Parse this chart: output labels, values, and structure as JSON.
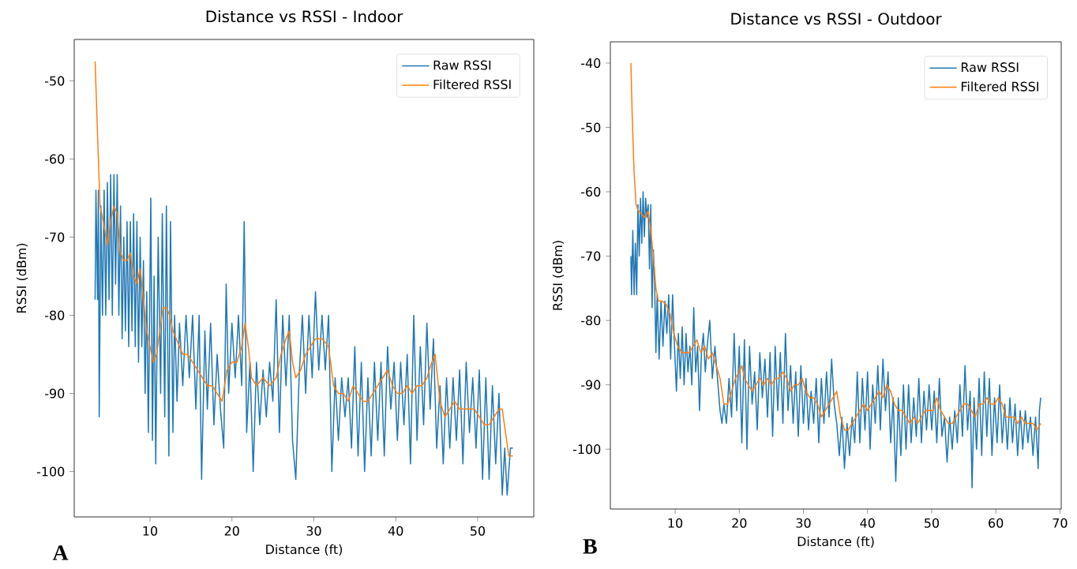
{
  "chart_data": [
    {
      "type": "line",
      "title": "Distance vs RSSI - Indoor",
      "xlabel": "Distance (ft)",
      "ylabel": "RSSI (dBm)",
      "xlim": [
        0.75,
        56.85
      ],
      "ylim": [
        -105.8,
        -44.7
      ],
      "xticks": [
        10,
        20,
        30,
        40,
        50
      ],
      "yticks": [
        -100,
        -90,
        -80,
        -70,
        -60,
        -50
      ],
      "legend": "top right",
      "grid": false,
      "marker": "none",
      "line_style": "solid",
      "annotations": [
        "A"
      ],
      "series": [
        {
          "name": "Raw RSSI",
          "color": "#1f77b4",
          "x": [
            3.3,
            3.4,
            3.6,
            3.7,
            3.8,
            4.0,
            4.2,
            4.4,
            4.6,
            4.8,
            5.0,
            5.2,
            5.4,
            5.6,
            5.8,
            6.0,
            6.2,
            6.4,
            6.6,
            6.8,
            7.0,
            7.2,
            7.4,
            7.6,
            7.8,
            8.0,
            8.2,
            8.4,
            8.6,
            8.8,
            9.0,
            9.2,
            9.4,
            9.6,
            9.8,
            10.1,
            10.3,
            10.5,
            10.7,
            11.0,
            11.3,
            11.5,
            11.8,
            12.0,
            12.3,
            12.5,
            12.8,
            13.0,
            13.3,
            13.6,
            14.0,
            14.4,
            14.8,
            15.2,
            15.6,
            16.0,
            16.3,
            16.7,
            17.0,
            17.4,
            17.8,
            18.2,
            18.6,
            19.0,
            19.3,
            19.6,
            20.0,
            20.4,
            20.8,
            21.2,
            21.5,
            21.8,
            22.2,
            22.6,
            23.0,
            23.4,
            23.8,
            24.2,
            24.6,
            25.0,
            25.4,
            25.8,
            26.2,
            26.6,
            27.0,
            27.4,
            27.8,
            28.2,
            28.6,
            29.0,
            29.4,
            29.8,
            30.2,
            30.6,
            31.0,
            31.4,
            31.8,
            32.2,
            32.6,
            33.0,
            33.4,
            33.8,
            34.2,
            34.6,
            35.0,
            35.4,
            35.8,
            36.2,
            36.6,
            37.0,
            37.4,
            37.8,
            38.2,
            38.6,
            39.0,
            39.4,
            39.8,
            40.2,
            40.6,
            41.0,
            41.4,
            41.8,
            42.2,
            42.6,
            43.0,
            43.4,
            43.8,
            44.2,
            44.6,
            45.0,
            45.4,
            45.8,
            46.2,
            46.6,
            47.0,
            47.4,
            47.8,
            48.2,
            48.6,
            49.0,
            49.4,
            49.8,
            50.2,
            50.6,
            51.0,
            51.4,
            51.8,
            52.2,
            52.6,
            53.0,
            53.3,
            53.6,
            54.0,
            54.3
          ],
          "values": [
            -78,
            -64,
            -78,
            -64,
            -93,
            -66,
            -80,
            -64,
            -80,
            -63,
            -78,
            -62,
            -80,
            -62,
            -76,
            -62,
            -80,
            -66,
            -83,
            -70,
            -82,
            -68,
            -84,
            -68,
            -82,
            -67,
            -84,
            -68,
            -86,
            -70,
            -84,
            -73,
            -90,
            -77,
            -95,
            -65,
            -96,
            -75,
            -99,
            -70,
            -90,
            -67,
            -93,
            -66,
            -98,
            -68,
            -95,
            -80,
            -91,
            -81,
            -89,
            -80,
            -88,
            -80,
            -92,
            -80,
            -101,
            -82,
            -92,
            -81,
            -94,
            -85,
            -92,
            -97,
            -76,
            -90,
            -81,
            -88,
            -80,
            -89,
            -68,
            -95,
            -86,
            -100,
            -86,
            -94,
            -87,
            -93,
            -86,
            -91,
            -78,
            -95,
            -80,
            -89,
            -80,
            -96,
            -101,
            -88,
            -80,
            -90,
            -80,
            -88,
            -77,
            -87,
            -80,
            -87,
            -80,
            -100,
            -88,
            -96,
            -88,
            -93,
            -88,
            -97,
            -84,
            -98,
            -86,
            -100,
            -88,
            -98,
            -86,
            -96,
            -86,
            -98,
            -84,
            -92,
            -86,
            -96,
            -86,
            -94,
            -85,
            -99,
            -80,
            -96,
            -84,
            -94,
            -81,
            -92,
            -83,
            -97,
            -89,
            -99,
            -88,
            -97,
            -88,
            -96,
            -87,
            -99,
            -86,
            -95,
            -88,
            -97,
            -87,
            -101,
            -88,
            -101,
            -89,
            -99,
            -90,
            -103,
            -97,
            -103,
            -97,
            -97
          ]
        },
        {
          "name": "Filtered RSSI",
          "color": "#ff7f0e",
          "x": [
            3.3,
            3.6,
            3.9,
            4.3,
            4.8,
            5.2,
            5.6,
            6.0,
            6.4,
            6.8,
            7.2,
            7.6,
            8.0,
            8.4,
            8.8,
            9.2,
            9.6,
            10.0,
            10.4,
            10.8,
            11.2,
            11.6,
            12.0,
            12.4,
            12.8,
            13.2,
            13.6,
            14.0,
            14.6,
            15.2,
            15.8,
            16.4,
            17.0,
            17.6,
            18.2,
            18.8,
            19.4,
            20.0,
            20.6,
            21.2,
            21.6,
            22.0,
            22.4,
            23.0,
            23.8,
            24.6,
            25.4,
            26.0,
            26.6,
            27.0,
            27.4,
            27.8,
            28.4,
            29.0,
            29.6,
            30.2,
            31.0,
            31.8,
            32.4,
            33.0,
            33.6,
            34.2,
            34.8,
            35.4,
            36.0,
            36.6,
            37.2,
            37.8,
            38.4,
            39.0,
            39.6,
            40.2,
            40.8,
            41.4,
            42.0,
            42.6,
            43.2,
            43.8,
            44.4,
            44.8,
            45.4,
            46.0,
            46.6,
            47.2,
            47.8,
            48.4,
            49.0,
            49.6,
            50.2,
            50.8,
            51.4,
            52.0,
            52.6,
            53.0,
            53.4,
            53.8,
            54.3
          ],
          "values": [
            -47.5,
            -57,
            -66,
            -68,
            -71,
            -68,
            -66,
            -67,
            -72,
            -73,
            -73,
            -72,
            -75,
            -76,
            -74,
            -78,
            -82,
            -84,
            -86,
            -85,
            -82,
            -79,
            -79,
            -80,
            -82,
            -83,
            -84,
            -85,
            -85,
            -86,
            -87,
            -88,
            -89,
            -89,
            -90,
            -91,
            -87,
            -86,
            -86,
            -84,
            -81,
            -84,
            -88,
            -89,
            -88,
            -89,
            -88,
            -85,
            -83,
            -82,
            -86,
            -88,
            -87,
            -85,
            -84,
            -83,
            -83,
            -84,
            -89,
            -90,
            -90,
            -91,
            -89,
            -90,
            -91,
            -91,
            -90,
            -89,
            -88,
            -87,
            -89,
            -90,
            -90,
            -89,
            -90,
            -89,
            -89,
            -88,
            -86,
            -85,
            -91,
            -93,
            -92,
            -91,
            -92,
            -92,
            -92,
            -92,
            -93,
            -94,
            -94,
            -93,
            -92,
            -92,
            -95,
            -98,
            -98
          ]
        }
      ]
    },
    {
      "type": "line",
      "title": "Distance vs RSSI - Outdoor",
      "xlabel": "Distance (ft)",
      "ylabel": "RSSI (dBm)",
      "xlim": [
        -0.1,
        70.2
      ],
      "ylim": [
        -109.3,
        -36.7
      ],
      "xticks": [
        10,
        20,
        30,
        40,
        50,
        60,
        70
      ],
      "yticks": [
        -100,
        -90,
        -80,
        -70,
        -60,
        -50,
        -40
      ],
      "legend": "top right",
      "grid": false,
      "marker": "none",
      "line_style": "solid",
      "annotations": [
        "B"
      ],
      "series": [
        {
          "name": "Raw RSSI",
          "color": "#1f77b4",
          "x": [
            3.1,
            3.2,
            3.4,
            3.6,
            3.8,
            4.0,
            4.2,
            4.4,
            4.6,
            4.8,
            5.0,
            5.2,
            5.4,
            5.6,
            5.8,
            6.0,
            6.2,
            6.4,
            6.6,
            6.8,
            7.0,
            7.2,
            7.5,
            7.8,
            8.1,
            8.4,
            8.7,
            9.0,
            9.3,
            9.6,
            9.9,
            10.2,
            10.5,
            10.8,
            11.1,
            11.4,
            11.7,
            12.0,
            12.3,
            12.6,
            12.9,
            13.2,
            13.5,
            13.8,
            14.1,
            14.4,
            14.7,
            15.0,
            15.4,
            15.8,
            16.2,
            16.6,
            17.0,
            17.3,
            17.6,
            18.0,
            18.4,
            18.8,
            19.2,
            19.6,
            20.0,
            20.4,
            20.8,
            21.2,
            21.6,
            22.0,
            22.4,
            22.8,
            23.2,
            23.6,
            24.0,
            24.4,
            24.8,
            25.2,
            25.6,
            26.0,
            26.4,
            26.8,
            27.2,
            27.6,
            28.0,
            28.4,
            28.8,
            29.2,
            29.6,
            30.0,
            30.4,
            30.8,
            31.2,
            31.6,
            32.0,
            32.4,
            32.8,
            33.2,
            33.6,
            34.0,
            34.4,
            34.8,
            35.2,
            35.6,
            36.0,
            36.4,
            36.8,
            37.2,
            37.6,
            38.0,
            38.4,
            38.8,
            39.2,
            39.6,
            40.0,
            40.4,
            40.8,
            41.2,
            41.6,
            42.0,
            42.4,
            42.8,
            43.2,
            43.6,
            44.0,
            44.4,
            44.8,
            45.2,
            45.6,
            46.0,
            46.4,
            46.8,
            47.2,
            47.6,
            48.0,
            48.4,
            48.8,
            49.2,
            49.6,
            50.0,
            50.4,
            50.8,
            51.2,
            51.6,
            52.0,
            52.4,
            52.8,
            53.2,
            53.6,
            54.0,
            54.4,
            54.8,
            55.2,
            55.6,
            56.0,
            56.3,
            56.6,
            57.0,
            57.4,
            57.8,
            58.2,
            58.6,
            59.0,
            59.4,
            59.8,
            60.2,
            60.6,
            61.0,
            61.4,
            61.8,
            62.2,
            62.6,
            63.0,
            63.4,
            63.8,
            64.2,
            64.6,
            65.0,
            65.4,
            65.8,
            66.2,
            66.6,
            66.8,
            67.0
          ],
          "values": [
            -70,
            -76,
            -66,
            -76,
            -68,
            -76,
            -62,
            -70,
            -61,
            -68,
            -60,
            -67,
            -61,
            -64,
            -62,
            -72,
            -62,
            -78,
            -69,
            -74,
            -85,
            -76,
            -86,
            -77,
            -84,
            -77,
            -82,
            -76,
            -86,
            -76,
            -84,
            -91,
            -82,
            -89,
            -81,
            -90,
            -82,
            -88,
            -84,
            -90,
            -78,
            -88,
            -84,
            -94,
            -85,
            -82,
            -88,
            -84,
            -80,
            -89,
            -84,
            -89,
            -94,
            -96,
            -93,
            -96,
            -89,
            -95,
            -82,
            -94,
            -84,
            -99,
            -83,
            -100,
            -84,
            -93,
            -88,
            -97,
            -85,
            -92,
            -86,
            -95,
            -85,
            -98,
            -84,
            -94,
            -85,
            -96,
            -82,
            -94,
            -87,
            -96,
            -88,
            -98,
            -87,
            -96,
            -89,
            -97,
            -91,
            -96,
            -89,
            -99,
            -89,
            -96,
            -88,
            -95,
            -86,
            -93,
            -96,
            -101,
            -95,
            -103,
            -96,
            -101,
            -95,
            -99,
            -88,
            -99,
            -89,
            -97,
            -88,
            -100,
            -90,
            -96,
            -87,
            -97,
            -86,
            -94,
            -88,
            -99,
            -92,
            -105,
            -92,
            -101,
            -90,
            -100,
            -90,
            -99,
            -92,
            -98,
            -89,
            -99,
            -91,
            -97,
            -90,
            -97,
            -91,
            -99,
            -89,
            -98,
            -95,
            -102,
            -95,
            -100,
            -94,
            -99,
            -90,
            -98,
            -87,
            -97,
            -91,
            -106,
            -92,
            -100,
            -89,
            -101,
            -88,
            -98,
            -89,
            -101,
            -92,
            -99,
            -90,
            -99,
            -93,
            -100,
            -92,
            -99,
            -93,
            -101,
            -94,
            -100,
            -94,
            -99,
            -95,
            -101,
            -95,
            -103,
            -94,
            -92
          ]
        },
        {
          "name": "Filtered RSSI",
          "color": "#ff7f0e",
          "x": [
            3.1,
            3.3,
            3.6,
            3.9,
            4.3,
            4.8,
            5.3,
            5.8,
            6.2,
            6.6,
            7.0,
            7.4,
            8.0,
            8.6,
            9.2,
            9.8,
            10.4,
            11.0,
            11.6,
            12.2,
            12.8,
            13.4,
            14.0,
            14.6,
            15.2,
            15.8,
            16.4,
            17.0,
            17.6,
            18.2,
            18.8,
            19.4,
            20.0,
            20.4,
            20.8,
            21.4,
            22.0,
            22.6,
            23.2,
            23.8,
            24.4,
            25.0,
            25.6,
            26.2,
            26.8,
            27.4,
            28.0,
            28.6,
            29.2,
            29.8,
            30.4,
            31.0,
            31.6,
            32.2,
            32.8,
            33.4,
            34.0,
            34.6,
            35.2,
            35.8,
            36.4,
            37.0,
            37.6,
            38.2,
            38.8,
            39.4,
            40.0,
            40.6,
            41.2,
            41.8,
            42.4,
            43.0,
            43.6,
            44.2,
            44.8,
            45.4,
            46.0,
            46.6,
            47.2,
            47.8,
            48.4,
            49.0,
            49.6,
            50.2,
            50.8,
            51.4,
            52.0,
            52.6,
            53.2,
            53.8,
            54.4,
            55.0,
            55.6,
            56.2,
            56.8,
            57.4,
            58.0,
            58.6,
            59.2,
            59.8,
            60.4,
            61.0,
            61.6,
            62.2,
            62.8,
            63.4,
            64.0,
            64.6,
            65.2,
            65.8,
            66.4,
            67.0
          ],
          "values": [
            -40,
            -48,
            -57,
            -62,
            -63,
            -63.5,
            -64,
            -63,
            -66,
            -70,
            -75,
            -77,
            -77,
            -77.5,
            -79,
            -82,
            -84,
            -85,
            -85,
            -85,
            -84,
            -83,
            -85,
            -84,
            -86,
            -85,
            -87,
            -89,
            -93,
            -93,
            -91,
            -89,
            -88,
            -87,
            -89,
            -90,
            -91,
            -90,
            -89,
            -90,
            -89,
            -90,
            -89,
            -89,
            -88,
            -89,
            -91,
            -90,
            -90,
            -89,
            -91,
            -92,
            -92,
            -93,
            -95,
            -94,
            -93,
            -92,
            -91,
            -95,
            -97,
            -97,
            -96,
            -95,
            -94,
            -93,
            -94,
            -93,
            -92,
            -91,
            -92,
            -90,
            -91,
            -93,
            -94,
            -94,
            -95,
            -96,
            -95,
            -96,
            -95,
            -94,
            -94,
            -94,
            -92,
            -94,
            -95,
            -96,
            -96,
            -95,
            -94,
            -93,
            -93,
            -94,
            -95,
            -93,
            -93,
            -92,
            -93,
            -93,
            -92,
            -93,
            -95,
            -95,
            -95,
            -96,
            -95,
            -96,
            -96,
            -96,
            -97,
            -96
          ]
        }
      ]
    }
  ]
}
